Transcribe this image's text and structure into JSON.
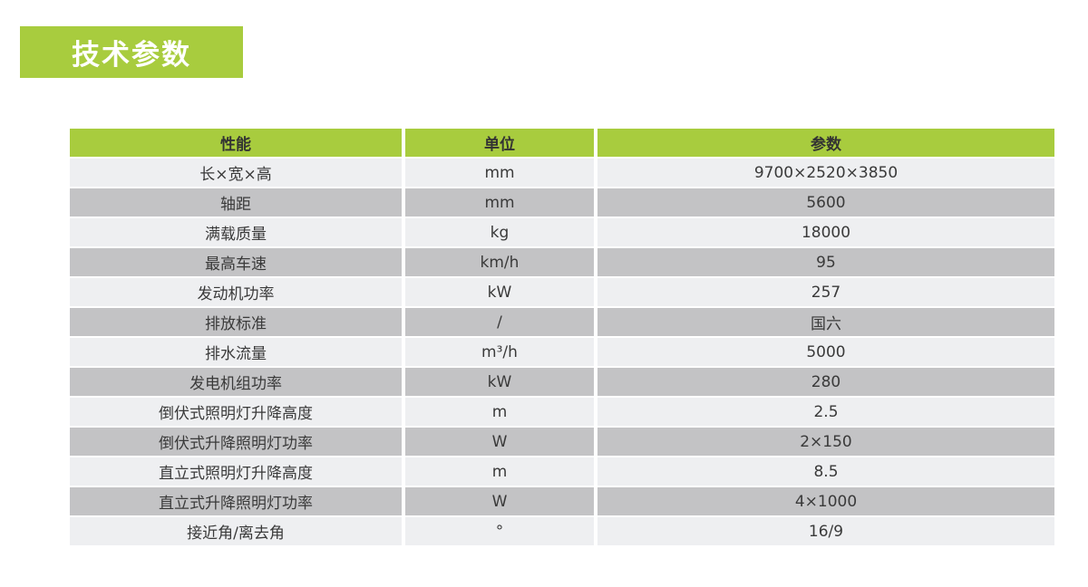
{
  "header": {
    "title": "技术参数"
  },
  "colors": {
    "brand_green": "#a8cc3e",
    "row_light": "#eeeff1",
    "row_dark": "#c3c3c5",
    "text": "#3a3a3a",
    "title_text": "#ffffff"
  },
  "table": {
    "columns": [
      "性能",
      "单位",
      "参数"
    ],
    "rows": [
      {
        "name": "长×宽×高",
        "unit": "mm",
        "value": "9700×2520×3850"
      },
      {
        "name": "轴距",
        "unit": "mm",
        "value": "5600"
      },
      {
        "name": "满载质量",
        "unit": "kg",
        "value": "18000"
      },
      {
        "name": "最高车速",
        "unit": "km/h",
        "value": "95"
      },
      {
        "name": "发动机功率",
        "unit": "kW",
        "value": "257"
      },
      {
        "name": "排放标准",
        "unit": "/",
        "value": "国六"
      },
      {
        "name": "排水流量",
        "unit": "m³/h",
        "value": "5000"
      },
      {
        "name": "发电机组功率",
        "unit": "kW",
        "value": "280"
      },
      {
        "name": "倒伏式照明灯升降高度",
        "unit": "m",
        "value": "2.5"
      },
      {
        "name": "倒伏式升降照明灯功率",
        "unit": "W",
        "value": "2×150"
      },
      {
        "name": "直立式照明灯升降高度",
        "unit": "m",
        "value": "8.5"
      },
      {
        "name": "直立式升降照明灯功率",
        "unit": "W",
        "value": "4×1000"
      },
      {
        "name": "接近角/离去角",
        "unit": "°",
        "value": "16/9"
      }
    ]
  }
}
